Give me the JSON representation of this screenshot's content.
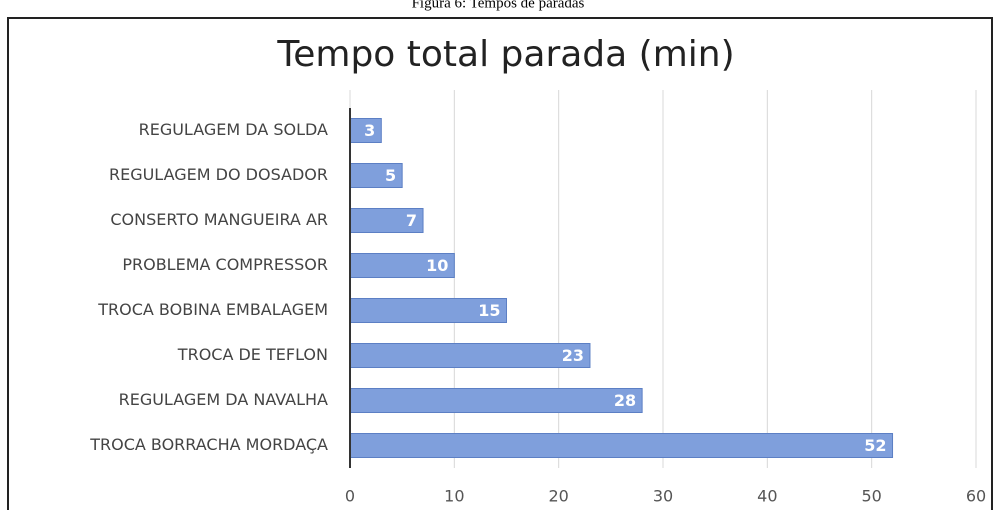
{
  "caption": "Figura 6: Tempos de paradas",
  "chart_data": {
    "type": "bar",
    "orientation": "horizontal",
    "title": "Tempo total parada (min)",
    "categories": [
      "REGULAGEM DA SOLDA",
      "REGULAGEM DO DOSADOR",
      "CONSERTO MANGUEIRA AR",
      "PROBLEMA COMPRESSOR",
      "TROCA BOBINA EMBALAGEM",
      "TROCA DE TEFLON",
      "REGULAGEM DA NAVALHA",
      "TROCA BORRACHA MORDAÇA"
    ],
    "values": [
      3,
      5,
      7,
      10,
      15,
      23,
      28,
      52
    ],
    "color": "#7f9fdc",
    "xlim": [
      0,
      60
    ],
    "xticks": [
      0,
      10,
      20,
      30,
      40,
      50,
      60
    ],
    "grid": true
  }
}
